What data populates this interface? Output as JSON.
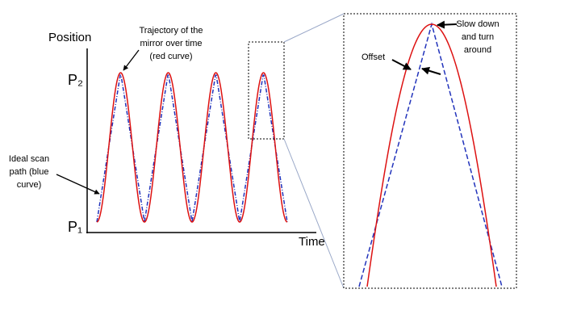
{
  "axis": {
    "y_label": "Position",
    "x_label": "Time",
    "top_level": "P₂",
    "bottom_level": "P₁"
  },
  "annotations": {
    "trajectory": [
      "Trajectory of the",
      "mirror over time",
      "(red curve)"
    ],
    "ideal": [
      "Ideal scan",
      "path (blue",
      "curve)"
    ],
    "offset": "Offset",
    "slow": [
      "Slow down",
      "and turn",
      "around"
    ]
  }
}
